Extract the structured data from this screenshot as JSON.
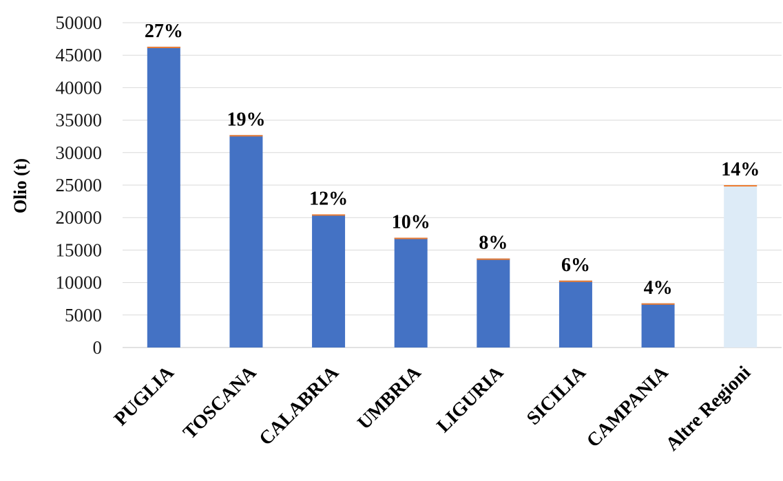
{
  "chart_data": {
    "type": "bar",
    "ylabel": "Olio (t)",
    "ylim": [
      0,
      50000
    ],
    "yticks": [
      0,
      5000,
      10000,
      15000,
      20000,
      25000,
      30000,
      35000,
      40000,
      45000,
      50000
    ],
    "grid": true,
    "categories": [
      "PUGLIA",
      "TOSCANA",
      "CALABRIA",
      "UMBRIA",
      "LIGURIA",
      "SICILIA",
      "CAMPANIA",
      "Altre Regioni"
    ],
    "values": [
      46300,
      32700,
      20500,
      16900,
      13700,
      10300,
      6800,
      25000
    ],
    "data_labels": [
      "27%",
      "19%",
      "12%",
      "10%",
      "8%",
      "6%",
      "4%",
      "14%"
    ],
    "colors": {
      "bar": "#4472C4",
      "bar_highlight": "#DDEBF7",
      "bar_cap": "#ED7D31",
      "grid": "#D9D9D9"
    },
    "highlight_index": 7
  }
}
